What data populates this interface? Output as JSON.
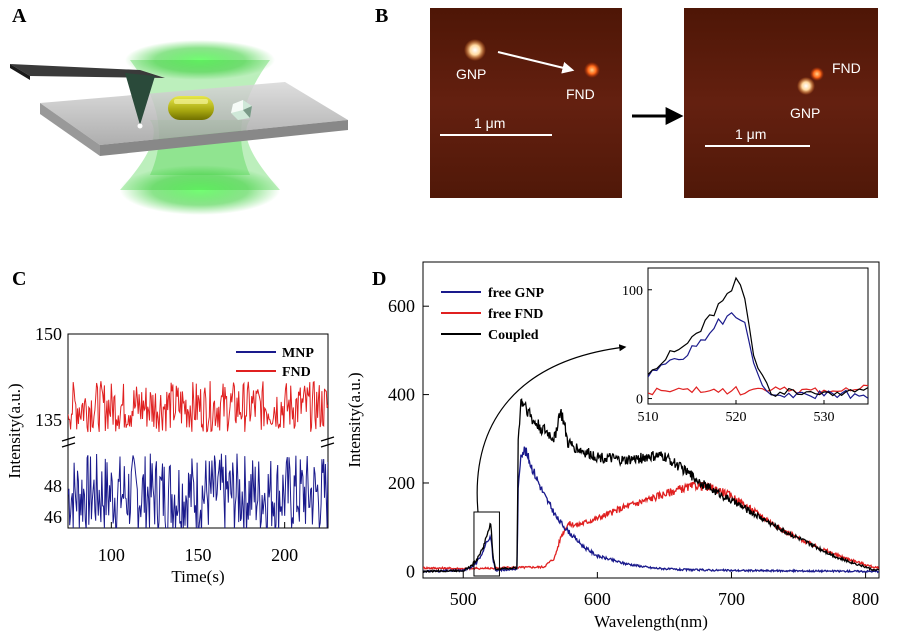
{
  "panels": {
    "a": {
      "label": "A"
    },
    "b": {
      "label": "B",
      "before": {
        "gnp": "GNP",
        "fnd": "FND",
        "scale": "1 μm"
      },
      "after": {
        "gnp": "GNP",
        "fnd": "FND",
        "scale": "1 μm"
      }
    },
    "c": {
      "label": "C"
    },
    "d": {
      "label": "D"
    }
  },
  "colors": {
    "blue": "#1a1a8c",
    "red": "#e02020",
    "black": "#000000",
    "afm_bg": "#5a1a08",
    "laser": "#3fd13f"
  },
  "chart_data": [
    {
      "id": "C",
      "type": "line",
      "title": "",
      "xlabel": "Time(s)",
      "ylabel": "Intensity(a.u.)",
      "xlim": [
        75,
        225
      ],
      "x_ticks": [
        "100",
        "150",
        "200"
      ],
      "y_ticks_upper": [
        "150",
        "135"
      ],
      "y_ticks_lower": [
        "48",
        "46"
      ],
      "broken_y_axis": true,
      "legend": {
        "position": "top-right"
      },
      "series": [
        {
          "name": "MNP",
          "color": "#1a1a8c",
          "mean": 47.5,
          "noise": 1.2,
          "segment": "lower"
        },
        {
          "name": "FND",
          "color": "#e02020",
          "mean": 137.5,
          "noise": 2.0,
          "segment": "upper"
        }
      ]
    },
    {
      "id": "D",
      "type": "line",
      "title": "",
      "xlabel": "Wavelength(nm)",
      "ylabel": "Intensity(a.u.)",
      "xlim": [
        470,
        810
      ],
      "ylim": [
        -15,
        700
      ],
      "x_ticks": [
        "500",
        "600",
        "700",
        "800"
      ],
      "y_ticks": [
        "0",
        "200",
        "400",
        "600"
      ],
      "legend": {
        "position": "top-left"
      },
      "series": [
        {
          "name": "free GNP",
          "color": "#1a1a8c",
          "points": [
            [
              470,
              0
            ],
            [
              500,
              2
            ],
            [
              505,
              8
            ],
            [
              510,
              20
            ],
            [
              515,
              45
            ],
            [
              518,
              70
            ],
            [
              520,
              78
            ],
            [
              521,
              72
            ],
            [
              522,
              30
            ],
            [
              524,
              2
            ],
            [
              540,
              5
            ],
            [
              541,
              180
            ],
            [
              543,
              270
            ],
            [
              546,
              275
            ],
            [
              552,
              230
            ],
            [
              560,
              175
            ],
            [
              570,
              120
            ],
            [
              580,
              85
            ],
            [
              590,
              55
            ],
            [
              600,
              35
            ],
            [
              620,
              18
            ],
            [
              640,
              8
            ],
            [
              660,
              4
            ],
            [
              700,
              2
            ],
            [
              750,
              1
            ],
            [
              805,
              0
            ]
          ]
        },
        {
          "name": "free FND",
          "color": "#e02020",
          "points": [
            [
              470,
              8
            ],
            [
              500,
              6
            ],
            [
              530,
              8
            ],
            [
              560,
              10
            ],
            [
              568,
              30
            ],
            [
              573,
              80
            ],
            [
              578,
              108
            ],
            [
              585,
              105
            ],
            [
              600,
              120
            ],
            [
              620,
              145
            ],
            [
              640,
              165
            ],
            [
              660,
              185
            ],
            [
              675,
              195
            ],
            [
              690,
              185
            ],
            [
              700,
              170
            ],
            [
              720,
              130
            ],
            [
              740,
              90
            ],
            [
              760,
              60
            ],
            [
              780,
              35
            ],
            [
              800,
              15
            ],
            [
              808,
              8
            ]
          ]
        },
        {
          "name": "Coupled",
          "color": "#000000",
          "points": [
            [
              470,
              0
            ],
            [
              500,
              2
            ],
            [
              505,
              10
            ],
            [
              510,
              25
            ],
            [
              515,
              55
            ],
            [
              518,
              85
            ],
            [
              520,
              108
            ],
            [
              521,
              95
            ],
            [
              522,
              40
            ],
            [
              524,
              5
            ],
            [
              540,
              8
            ],
            [
              541,
              300
            ],
            [
              543,
              385
            ],
            [
              546,
              380
            ],
            [
              552,
              340
            ],
            [
              560,
              320
            ],
            [
              568,
              300
            ],
            [
              572,
              360
            ],
            [
              574,
              350
            ],
            [
              578,
              290
            ],
            [
              590,
              270
            ],
            [
              600,
              260
            ],
            [
              620,
              250
            ],
            [
              640,
              260
            ],
            [
              650,
              260
            ],
            [
              660,
              240
            ],
            [
              680,
              195
            ],
            [
              700,
              160
            ],
            [
              720,
              125
            ],
            [
              740,
              90
            ],
            [
              760,
              60
            ],
            [
              780,
              30
            ],
            [
              800,
              10
            ],
            [
              806,
              3
            ]
          ]
        }
      ],
      "highlight_box_x": [
        508,
        527
      ],
      "inset": {
        "xlim": [
          510,
          535
        ],
        "ylim": [
          -5,
          120
        ],
        "x_ticks": [
          "510",
          "520",
          "530"
        ],
        "y_ticks": [
          "0",
          "100"
        ]
      }
    }
  ]
}
